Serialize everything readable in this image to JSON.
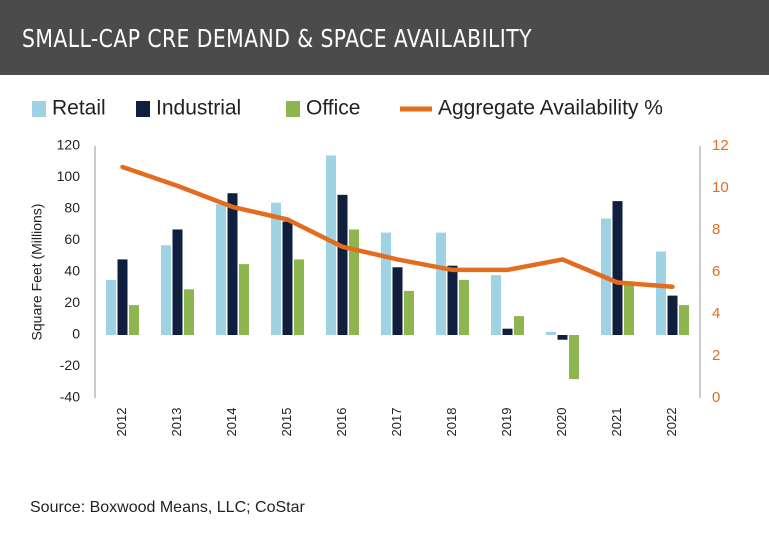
{
  "chart_data": {
    "type": "bar",
    "title": "SMALL-CAP CRE DEMAND & SPACE AVAILABILITY",
    "source": "Source: Boxwood Means, LLC; CoStar",
    "y_axis_label": "Square Feet (Millions)",
    "categories": [
      "2012",
      "2013",
      "2014",
      "2015",
      "2016",
      "2017",
      "2018",
      "2019",
      "2020",
      "2021",
      "2022"
    ],
    "series": [
      {
        "name": "Retail",
        "color": "#9fd3e4",
        "values": [
          35,
          57,
          83,
          84,
          114,
          65,
          65,
          38,
          2,
          74,
          53
        ]
      },
      {
        "name": "Industrial",
        "color": "#0f1f3d",
        "values": [
          48,
          67,
          90,
          72,
          89,
          43,
          44,
          4,
          -3,
          85,
          25
        ]
      },
      {
        "name": "Office",
        "color": "#8db651",
        "values": [
          19,
          29,
          45,
          48,
          67,
          28,
          35,
          12,
          -28,
          32,
          19
        ]
      },
      {
        "name": "Aggregate Availability %",
        "color": "#e46c1f",
        "type": "line",
        "axis": "y2",
        "values": [
          11.0,
          10.1,
          9.1,
          8.5,
          7.2,
          6.6,
          6.1,
          6.1,
          6.6,
          5.5,
          5.3
        ]
      }
    ],
    "ylim": [
      -40,
      120
    ],
    "yticks": [
      -40,
      -20,
      0,
      20,
      40,
      60,
      80,
      100,
      120
    ],
    "y2lim": [
      0,
      12
    ],
    "y2ticks": [
      0,
      2,
      4,
      6,
      8,
      10,
      12
    ],
    "legend": "top",
    "grid": false
  }
}
